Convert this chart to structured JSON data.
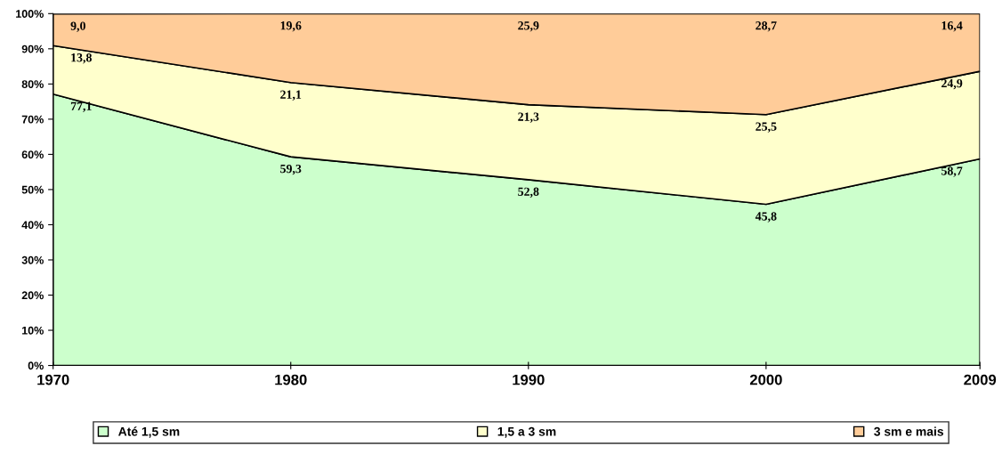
{
  "chart_data": {
    "type": "area",
    "stacked": true,
    "x": [
      1970,
      1980,
      1990,
      2000,
      2009
    ],
    "xlim": [
      1970,
      2009
    ],
    "xticks": [
      1970,
      1980,
      1990,
      2000,
      2009
    ],
    "ylim": [
      0,
      100
    ],
    "yticks": [
      {
        "value": 0,
        "label": "0%"
      },
      {
        "value": 10,
        "label": "10%"
      },
      {
        "value": 20,
        "label": "20%"
      },
      {
        "value": 30,
        "label": "30%"
      },
      {
        "value": 40,
        "label": "40%"
      },
      {
        "value": 50,
        "label": "50%"
      },
      {
        "value": 60,
        "label": "60%"
      },
      {
        "value": 70,
        "label": "70%"
      },
      {
        "value": 80,
        "label": "80%"
      },
      {
        "value": 90,
        "label": "90%"
      },
      {
        "value": 100,
        "label": "100%"
      }
    ],
    "grid": false,
    "legend": "bottom",
    "series": [
      {
        "name": "Até 1,5 sm",
        "color": "#ccffcc",
        "values": [
          77.1,
          59.3,
          52.8,
          45.8,
          58.7
        ],
        "value_labels": [
          "77,1",
          "59,3",
          "52,8",
          "45,8",
          "58,7"
        ]
      },
      {
        "name": "1,5 a 3 sm",
        "color": "#ffffcc",
        "values": [
          13.8,
          21.1,
          21.3,
          25.5,
          24.9
        ],
        "value_labels": [
          "13,8",
          "21,1",
          "21,3",
          "25,5",
          "24,9"
        ]
      },
      {
        "name": "3 sm e mais",
        "color": "#ffcc99",
        "values": [
          9.0,
          19.6,
          25.9,
          28.7,
          16.4
        ],
        "value_labels": [
          "9,0",
          "19,6",
          "25,9",
          "28,7",
          "16,4"
        ]
      }
    ]
  }
}
